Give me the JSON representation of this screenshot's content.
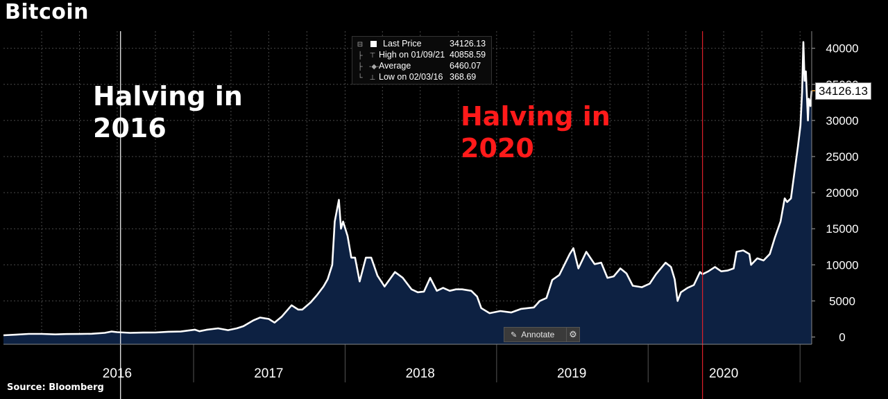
{
  "title": "Bitcoin",
  "source": "Source:  Bloomberg",
  "annotations": {
    "halving_2016": "Halving in\n2016",
    "halving_2020": "Halving in\n2020",
    "halving_2016_color": "#ffffff",
    "halving_2020_color": "#ff1a1a"
  },
  "legend": {
    "rows": [
      {
        "label": "Last Price",
        "value": "34126.13"
      },
      {
        "label": "High on 01/09/21",
        "value": "40858.59"
      },
      {
        "label": "Average",
        "value": "6460.07"
      },
      {
        "label": "Low on 02/03/16",
        "value": "368.69"
      }
    ]
  },
  "annotate_label": "Annotate",
  "last_price_label": "34126.13",
  "colors": {
    "background": "#000000",
    "line": "#ffffff",
    "area": "#0d2142",
    "grid": "#4a4a4a",
    "halving_2016_line": "#ffffff",
    "halving_2020_line": "#e0202a",
    "last_price_marker": "#f0a030"
  },
  "chart_data": {
    "type": "area",
    "title": "Bitcoin",
    "xlabel": "",
    "ylabel": "",
    "ylim": [
      0,
      42000
    ],
    "yticks": [
      0,
      5000,
      10000,
      15000,
      20000,
      25000,
      30000,
      35000,
      40000
    ],
    "ytick_labels": [
      "0",
      "5000",
      "10000",
      "15000",
      "20000",
      "25000",
      "30000",
      "35000",
      "40000"
    ],
    "year_labels": [
      "2016",
      "2017",
      "2018",
      "2019",
      "2020"
    ],
    "xlim": [
      "2015-10-01",
      "2021-01-29"
    ],
    "grid": true,
    "y_axis_position": "right",
    "last_price": 34126.13,
    "vertical_markers": [
      {
        "date": "2016-07-09",
        "label": "Halving in 2016",
        "color": "#ffffff"
      },
      {
        "date": "2020-05-11",
        "label": "Halving in 2020",
        "color": "#e0202a"
      }
    ],
    "series": [
      {
        "x": [
          "2015-10-01",
          "2015-11-01",
          "2015-12-01",
          "2016-01-01",
          "2016-02-03",
          "2016-03-01",
          "2016-04-01",
          "2016-05-01",
          "2016-06-01",
          "2016-06-17",
          "2016-07-01",
          "2016-08-01",
          "2016-09-01",
          "2016-10-01",
          "2016-11-01",
          "2016-12-01",
          "2017-01-04",
          "2017-01-15",
          "2017-02-01",
          "2017-03-01",
          "2017-03-25",
          "2017-04-15",
          "2017-05-01",
          "2017-05-25",
          "2017-06-10",
          "2017-07-01",
          "2017-07-15",
          "2017-08-01",
          "2017-08-25",
          "2017-09-10",
          "2017-09-20",
          "2017-10-10",
          "2017-10-25",
          "2017-11-10",
          "2017-11-20",
          "2017-12-01",
          "2017-12-07",
          "2017-12-17",
          "2017-12-22",
          "2017-12-27",
          "2018-01-07",
          "2018-01-16",
          "2018-01-25",
          "2018-02-05",
          "2018-02-20",
          "2018-03-05",
          "2018-03-20",
          "2018-04-06",
          "2018-05-01",
          "2018-05-20",
          "2018-06-10",
          "2018-06-25",
          "2018-07-10",
          "2018-07-25",
          "2018-08-10",
          "2018-08-25",
          "2018-09-10",
          "2018-09-25",
          "2018-10-10",
          "2018-11-01",
          "2018-11-15",
          "2018-11-25",
          "2018-12-15",
          "2019-01-10",
          "2019-02-05",
          "2019-03-01",
          "2019-04-01",
          "2019-04-15",
          "2019-05-01",
          "2019-05-15",
          "2019-06-01",
          "2019-06-26",
          "2019-07-05",
          "2019-07-17",
          "2019-08-05",
          "2019-08-25",
          "2019-09-10",
          "2019-09-25",
          "2019-10-10",
          "2019-10-26",
          "2019-11-10",
          "2019-11-25",
          "2019-12-17",
          "2020-01-05",
          "2020-01-20",
          "2020-02-12",
          "2020-02-25",
          "2020-03-05",
          "2020-03-12",
          "2020-03-20",
          "2020-04-05",
          "2020-04-20",
          "2020-05-05",
          "2020-05-11",
          "2020-05-25",
          "2020-06-10",
          "2020-06-25",
          "2020-07-10",
          "2020-07-25",
          "2020-08-01",
          "2020-08-17",
          "2020-09-01",
          "2020-09-05",
          "2020-09-20",
          "2020-10-05",
          "2020-10-20",
          "2020-11-01",
          "2020-11-15",
          "2020-11-25",
          "2020-12-01",
          "2020-12-10",
          "2020-12-20",
          "2020-12-27",
          "2021-01-02",
          "2021-01-06",
          "2021-01-09",
          "2021-01-12",
          "2021-01-15",
          "2021-01-20",
          "2021-01-22",
          "2021-01-26",
          "2021-01-29"
        ],
        "values": [
          240,
          330,
          430,
          430,
          369,
          415,
          420,
          450,
          580,
          760,
          670,
          580,
          610,
          620,
          730,
          760,
          1020,
          800,
          1000,
          1200,
          950,
          1200,
          1500,
          2300,
          2700,
          2500,
          2000,
          2800,
          4400,
          3800,
          3800,
          4800,
          5800,
          7000,
          8000,
          10000,
          16000,
          19000,
          15000,
          16000,
          14000,
          11000,
          11000,
          7700,
          11000,
          11000,
          8500,
          7000,
          9000,
          8200,
          6600,
          6200,
          6300,
          8200,
          6400,
          6800,
          6400,
          6600,
          6600,
          6400,
          5600,
          4000,
          3300,
          3600,
          3400,
          3900,
          4100,
          5000,
          5400,
          7900,
          8600,
          11500,
          12300,
          9500,
          11800,
          10100,
          10300,
          8200,
          8400,
          9500,
          8800,
          7100,
          6900,
          7400,
          8700,
          10300,
          9700,
          8000,
          5000,
          6200,
          6800,
          7200,
          9000,
          8700,
          9100,
          9700,
          9100,
          9200,
          9500,
          11800,
          12000,
          11500,
          10000,
          10900,
          10600,
          11500,
          13700,
          16000,
          19200,
          18700,
          19200,
          23500,
          26500,
          29300,
          34000,
          40859,
          35500,
          36800,
          30000,
          33000,
          32000,
          34126
        ]
      }
    ]
  }
}
